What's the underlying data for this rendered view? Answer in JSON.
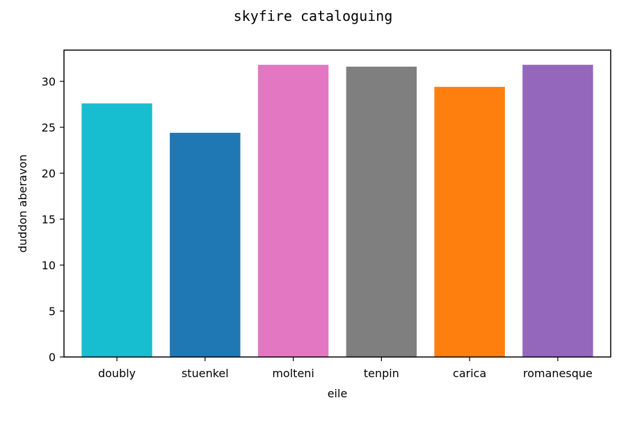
{
  "chart_data": {
    "type": "bar",
    "title": "skyfire cataloguing",
    "xlabel": "eile",
    "ylabel": "duddon aberavon",
    "categories": [
      "doubly",
      "stuenkel",
      "molteni",
      "tenpin",
      "carica",
      "romanesque"
    ],
    "values": [
      27.6,
      24.4,
      31.8,
      31.6,
      29.4,
      31.8
    ],
    "colors": [
      "#17becf",
      "#1f77b4",
      "#e377c2",
      "#7f7f7f",
      "#ff7f0e",
      "#9467bd"
    ],
    "ylim": [
      0,
      33.4
    ],
    "yticks": [
      0,
      5,
      10,
      15,
      20,
      25,
      30
    ],
    "grid": false,
    "legend": "none"
  }
}
